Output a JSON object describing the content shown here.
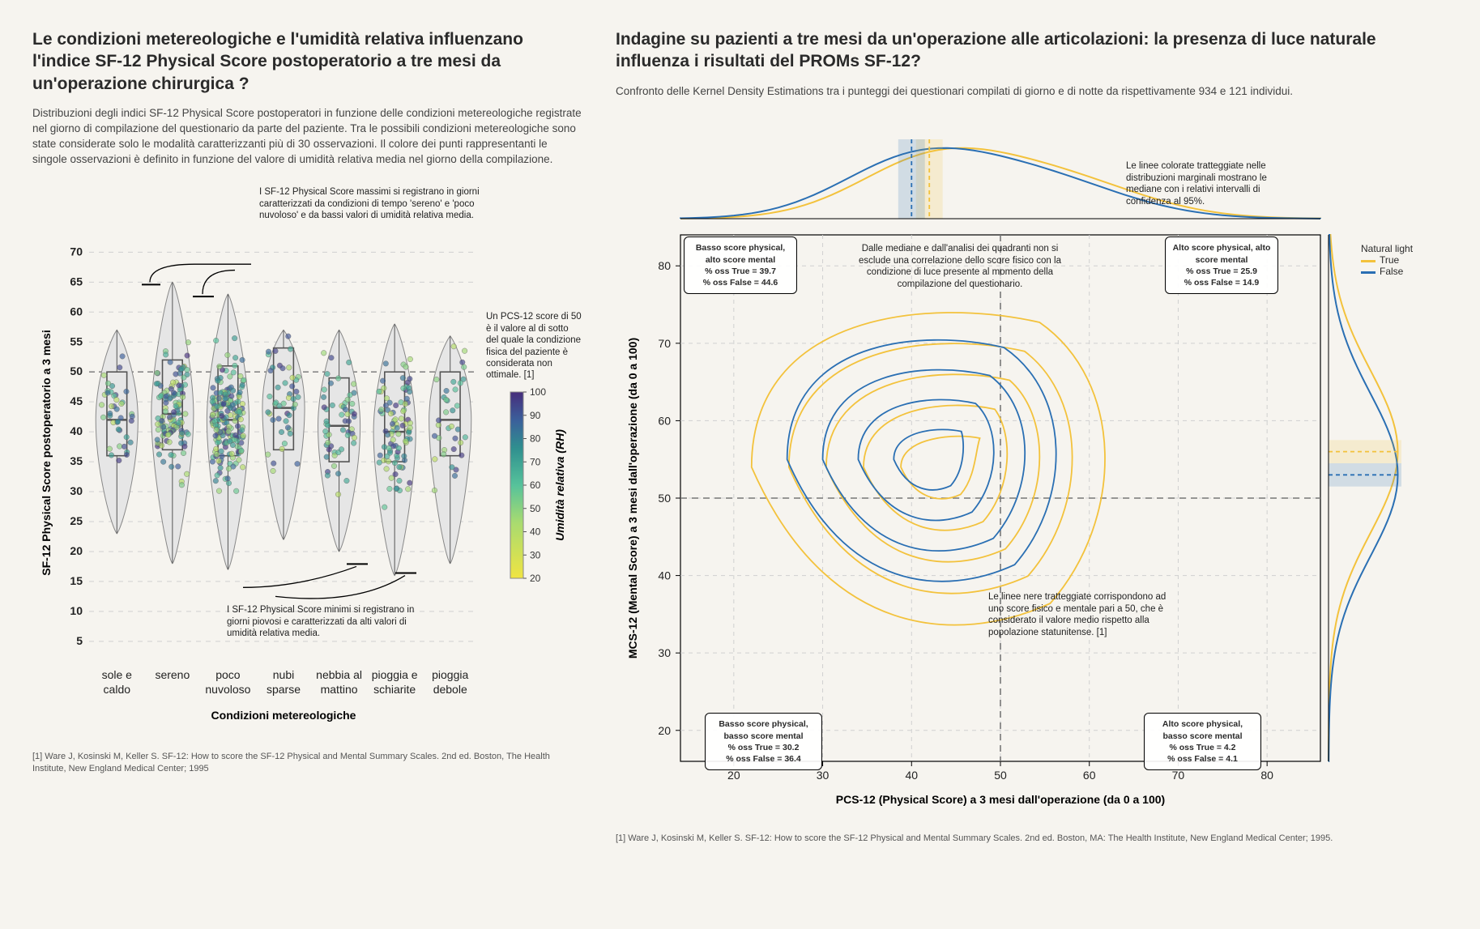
{
  "colors": {
    "bg": "#f6f4ef",
    "grid": "#d0d0d0",
    "grid_dark": "#888888",
    "box_outline": "#555555",
    "violin_fill": "#e6e6e6",
    "nat_true": "#f3c23c",
    "nat_false": "#2a6fb3",
    "viridis_20": "#f0e442",
    "viridis_50": "#7bc8a4",
    "viridis_70": "#3e9e8f",
    "viridis_100": "#472d7b"
  },
  "left": {
    "title": "Le condizioni metereologiche e l'umidità relativa influenzano l'indice SF-12 Physical Score postoperatorio a tre mesi da un'operazione chirurgica ?",
    "subtitle": "Distribuzioni degli indici SF-12 Physical Score postoperatori in funzione delle condizioni metereologiche registrate nel giorno di compilazione del questionario da parte del paziente. Tra le possibili condizioni metereologiche sono state considerate solo le modalità caratterizzanti più di 30 osservazioni. Il colore dei punti rappresentanti le singole osservazioni è definito in funzione del valore di umidità relativa media nel giorno della compilazione.",
    "y_label": "SF-12 Physical Score postoperatorio a 3 mesi",
    "x_label": "Condizioni metereologiche",
    "y_ticks": [
      5,
      10,
      15,
      20,
      25,
      30,
      35,
      40,
      45,
      50,
      55,
      60,
      65,
      70
    ],
    "ref_line": 50,
    "categories": [
      {
        "label": "sole e caldo",
        "q1": 36,
        "med": 42,
        "q3": 50,
        "lo": 23,
        "hi": 57,
        "n": 40
      },
      {
        "label": "sereno",
        "q1": 37,
        "med": 43,
        "q3": 52,
        "lo": 18,
        "hi": 65,
        "n": 120
      },
      {
        "label": "poco nuvoloso",
        "q1": 36,
        "med": 42,
        "q3": 51,
        "lo": 17,
        "hi": 63,
        "n": 180
      },
      {
        "label": "nubi sparse",
        "q1": 37,
        "med": 44,
        "q3": 54,
        "lo": 22,
        "hi": 57,
        "n": 45
      },
      {
        "label": "nebbia al mattino",
        "q1": 35,
        "med": 41,
        "q3": 49,
        "lo": 20,
        "hi": 57,
        "n": 55
      },
      {
        "label": "pioggia e schiarite",
        "q1": 35,
        "med": 40,
        "q3": 50,
        "lo": 16,
        "hi": 58,
        "n": 90
      },
      {
        "label": "pioggia debole",
        "q1": 36,
        "med": 42,
        "q3": 50,
        "lo": 18,
        "hi": 56,
        "n": 35
      }
    ],
    "colorbar": {
      "title": "Umidità relativa (RH)",
      "ticks": [
        20,
        30,
        40,
        50,
        60,
        70,
        80,
        90,
        100
      ]
    },
    "note_max": "I SF-12 Physical Score massimi si registrano in giorni caratterizzati da condizioni di tempo 'sereno' e 'poco nuvoloso' e da bassi valori di umidità relativa media.",
    "note_min": "I SF-12 Physical Score minimi si registrano in giorni piovosi e caratterizzati da alti valori di umidità relativa media.",
    "note_ref": "Un PCS-12 score di 50 è il valore al di sotto del quale la condizione fisica del paziente è considerata non ottimale. [1]",
    "citation": "[1] Ware J, Kosinski M, Keller S. SF-12: How to score the SF-12 Physical and Mental Summary Scales. 2nd ed. Boston, The Health Institute, New England Medical Center; 1995"
  },
  "right": {
    "title": "Indagine su pazienti a tre mesi da un'operazione alle articolazioni: la presenza di luce naturale influenza i risultati del PROMs SF-12?",
    "subtitle": "Confronto delle Kernel Density Estimations tra i punteggi dei questionari compilati di giorno e di notte da rispettivamente 934 e 121 individui.",
    "x_label": "PCS-12 (Physical Score) a 3 mesi dall'operazione (da 0 a 100)",
    "y_label": "MCS-12 (Mental Score) a 3 mesi dall'operazione (da 0 a 100)",
    "ticks": [
      20,
      30,
      40,
      50,
      60,
      70,
      80
    ],
    "ylim": [
      16,
      84
    ],
    "legend_title": "Natural light",
    "legend_items": [
      {
        "label": "True",
        "color": "#f3c23c"
      },
      {
        "label": "False",
        "color": "#2a6fb3"
      }
    ],
    "median_x": {
      "true": 42,
      "false": 40
    },
    "median_y": {
      "true": 56,
      "false": 53
    },
    "note_medians": "Le linee colorate tratteggiate nelle distribuzioni marginali mostrano le mediane con i relativi intervalli di confidenza al 95%.",
    "note_center": "Dalle mediane e dall'analisi dei quadranti non si esclude una correlazione dello score fisico con la condizione di luce presente al momento della compilazione del questionario.",
    "note_ref50": "Le linee nere tratteggiate corrispondono ad uno score fisico e mentale pari a 50, che è considerato il valore medio rispetto alla popolazione statunitense. [1]",
    "quadrants": {
      "tl": {
        "h": "Basso score physical,\nalto score mental",
        "t": "% oss True = 39.7",
        "f": "% oss False = 44.6"
      },
      "tr": {
        "h": "Alto score physical,\nalto score mental",
        "t": "% oss True = 25.9",
        "f": "% oss False = 14.9"
      },
      "bl": {
        "h": "Basso score physical,\nbasso score mental",
        "t": "% oss True = 30.2",
        "f": "% oss False = 36.4"
      },
      "br": {
        "h": "Alto score physical,\nbasso score mental",
        "t": "% oss True = 4.2",
        "f": "% oss False = 4.1"
      }
    },
    "citation": "[1] Ware J, Kosinski M, Keller S. SF-12: How to score the SF-12 Physical and Mental Summary Scales. 2nd ed. Boston, MA: The Health Institute, New England Medical Center; 1995."
  }
}
